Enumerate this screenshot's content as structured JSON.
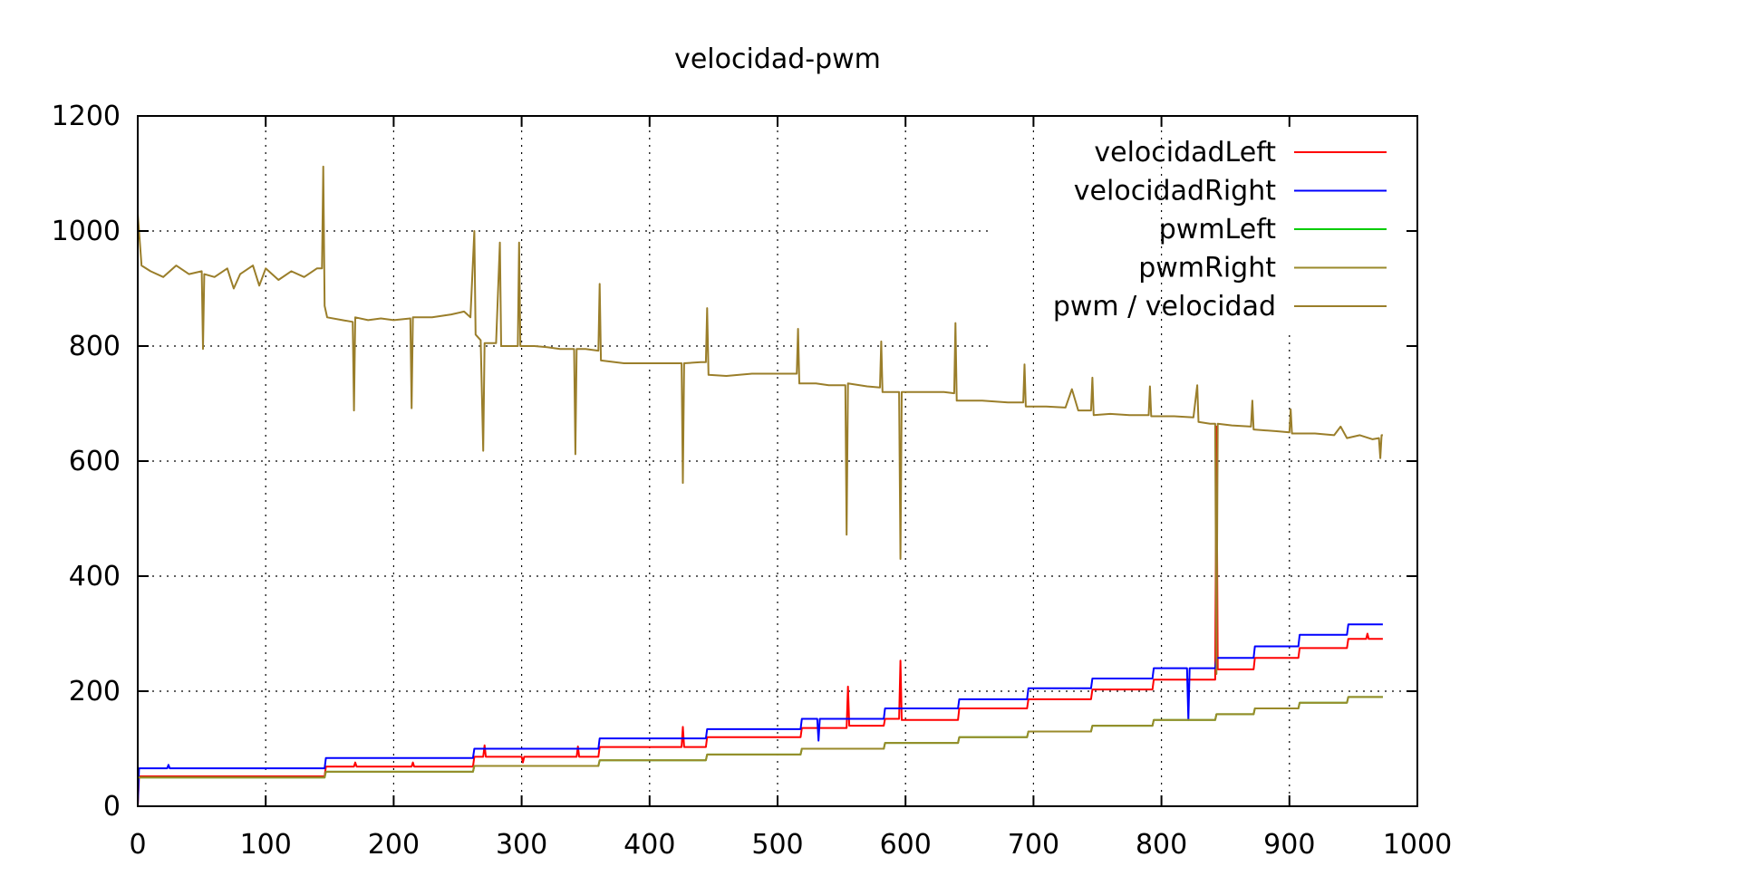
{
  "chart_data": {
    "type": "line",
    "title": "velocidad-pwm",
    "xlabel": "",
    "ylabel": "",
    "xlim": [
      0,
      1000
    ],
    "ylim": [
      0,
      1200
    ],
    "xticks": [
      0,
      100,
      200,
      300,
      400,
      500,
      600,
      700,
      800,
      900,
      1000
    ],
    "yticks": [
      0,
      200,
      400,
      600,
      800,
      1000,
      1200
    ],
    "grid": true,
    "legend_position": "top-right",
    "series": [
      {
        "name": "velocidadLeft",
        "color": "#ff0000",
        "points": [
          [
            0,
            0
          ],
          [
            1,
            52
          ],
          [
            146,
            52
          ],
          [
            147,
            69
          ],
          [
            169,
            69
          ],
          [
            170,
            76
          ],
          [
            171,
            69
          ],
          [
            214,
            69
          ],
          [
            215,
            76
          ],
          [
            216,
            69
          ],
          [
            262,
            69
          ],
          [
            263,
            86
          ],
          [
            270,
            86
          ],
          [
            271,
            106
          ],
          [
            272,
            86
          ],
          [
            300,
            86
          ],
          [
            301,
            76
          ],
          [
            302,
            86
          ],
          [
            343,
            86
          ],
          [
            344,
            104
          ],
          [
            345,
            86
          ],
          [
            360,
            86
          ],
          [
            361,
            103
          ],
          [
            425,
            103
          ],
          [
            426,
            138
          ],
          [
            427,
            103
          ],
          [
            444,
            103
          ],
          [
            445,
            120
          ],
          [
            518,
            120
          ],
          [
            519,
            136
          ],
          [
            554,
            136
          ],
          [
            555,
            208
          ],
          [
            556,
            140
          ],
          [
            583,
            140
          ],
          [
            584,
            152
          ],
          [
            595,
            152
          ],
          [
            596,
            253
          ],
          [
            597,
            150
          ],
          [
            641,
            150
          ],
          [
            642,
            170
          ],
          [
            695,
            170
          ],
          [
            696,
            186
          ],
          [
            745,
            186
          ],
          [
            746,
            203
          ],
          [
            793,
            203
          ],
          [
            794,
            220
          ],
          [
            842,
            220
          ],
          [
            843,
            660
          ],
          [
            844,
            238
          ],
          [
            845,
            238
          ],
          [
            872,
            238
          ],
          [
            873,
            258
          ],
          [
            907,
            258
          ],
          [
            908,
            275
          ],
          [
            945,
            275
          ],
          [
            946,
            291
          ],
          [
            960,
            291
          ],
          [
            961,
            300
          ],
          [
            962,
            291
          ],
          [
            973,
            291
          ]
        ]
      },
      {
        "name": "velocidadRight",
        "color": "#0000ff",
        "points": [
          [
            0,
            0
          ],
          [
            1,
            66
          ],
          [
            23,
            66
          ],
          [
            24,
            72
          ],
          [
            25,
            66
          ],
          [
            146,
            66
          ],
          [
            147,
            84
          ],
          [
            262,
            84
          ],
          [
            263,
            100
          ],
          [
            360,
            100
          ],
          [
            361,
            118
          ],
          [
            444,
            118
          ],
          [
            445,
            134
          ],
          [
            518,
            134
          ],
          [
            519,
            152
          ],
          [
            531,
            152
          ],
          [
            532,
            114
          ],
          [
            533,
            152
          ],
          [
            583,
            152
          ],
          [
            584,
            170
          ],
          [
            641,
            170
          ],
          [
            642,
            186
          ],
          [
            695,
            186
          ],
          [
            696,
            205
          ],
          [
            745,
            205
          ],
          [
            746,
            222
          ],
          [
            793,
            222
          ],
          [
            794,
            240
          ],
          [
            820,
            240
          ],
          [
            821,
            150
          ],
          [
            822,
            240
          ],
          [
            842,
            240
          ],
          [
            843,
            258
          ],
          [
            872,
            258
          ],
          [
            873,
            278
          ],
          [
            907,
            278
          ],
          [
            908,
            298
          ],
          [
            945,
            298
          ],
          [
            946,
            316
          ],
          [
            973,
            316
          ]
        ]
      },
      {
        "name": "pwmLeft",
        "color": "#00cc00",
        "points": [
          [
            0,
            50
          ],
          [
            146,
            50
          ],
          [
            147,
            60
          ],
          [
            262,
            60
          ],
          [
            263,
            70
          ],
          [
            360,
            70
          ],
          [
            361,
            80
          ],
          [
            444,
            80
          ],
          [
            445,
            90
          ],
          [
            518,
            90
          ],
          [
            519,
            100
          ],
          [
            583,
            100
          ],
          [
            584,
            110
          ],
          [
            641,
            110
          ],
          [
            642,
            120
          ],
          [
            695,
            120
          ],
          [
            696,
            130
          ],
          [
            745,
            130
          ],
          [
            746,
            140
          ],
          [
            793,
            140
          ],
          [
            794,
            150
          ],
          [
            842,
            150
          ],
          [
            843,
            160
          ],
          [
            872,
            160
          ],
          [
            873,
            170
          ],
          [
            907,
            170
          ],
          [
            908,
            180
          ],
          [
            945,
            180
          ],
          [
            946,
            190
          ],
          [
            973,
            190
          ]
        ]
      },
      {
        "name": "pwmRight",
        "color": "#9a8a2a",
        "points": [
          [
            0,
            50
          ],
          [
            146,
            50
          ],
          [
            147,
            60
          ],
          [
            262,
            60
          ],
          [
            263,
            70
          ],
          [
            360,
            70
          ],
          [
            361,
            80
          ],
          [
            444,
            80
          ],
          [
            445,
            90
          ],
          [
            518,
            90
          ],
          [
            519,
            100
          ],
          [
            583,
            100
          ],
          [
            584,
            110
          ],
          [
            641,
            110
          ],
          [
            642,
            120
          ],
          [
            695,
            120
          ],
          [
            696,
            130
          ],
          [
            745,
            130
          ],
          [
            746,
            140
          ],
          [
            793,
            140
          ],
          [
            794,
            150
          ],
          [
            842,
            150
          ],
          [
            843,
            160
          ],
          [
            872,
            160
          ],
          [
            873,
            170
          ],
          [
            907,
            170
          ],
          [
            908,
            180
          ],
          [
            945,
            180
          ],
          [
            946,
            190
          ],
          [
            973,
            190
          ]
        ]
      },
      {
        "name": "pwm / velocidad",
        "color": "#9a7e2a",
        "points": [
          [
            0,
            1030
          ],
          [
            3,
            940
          ],
          [
            10,
            930
          ],
          [
            20,
            920
          ],
          [
            30,
            940
          ],
          [
            40,
            925
          ],
          [
            50,
            930
          ],
          [
            51,
            795
          ],
          [
            52,
            925
          ],
          [
            60,
            920
          ],
          [
            70,
            935
          ],
          [
            75,
            900
          ],
          [
            80,
            925
          ],
          [
            90,
            940
          ],
          [
            95,
            905
          ],
          [
            100,
            935
          ],
          [
            110,
            915
          ],
          [
            120,
            930
          ],
          [
            130,
            920
          ],
          [
            140,
            935
          ],
          [
            144,
            935
          ],
          [
            145,
            1112
          ],
          [
            146,
            870
          ],
          [
            148,
            850
          ],
          [
            160,
            845
          ],
          [
            168,
            842
          ],
          [
            169,
            688
          ],
          [
            170,
            850
          ],
          [
            180,
            845
          ],
          [
            190,
            848
          ],
          [
            200,
            845
          ],
          [
            213,
            848
          ],
          [
            214,
            692
          ],
          [
            215,
            850
          ],
          [
            230,
            850
          ],
          [
            245,
            855
          ],
          [
            255,
            860
          ],
          [
            260,
            850
          ],
          [
            263,
            1000
          ],
          [
            264,
            820
          ],
          [
            268,
            810
          ],
          [
            270,
            618
          ],
          [
            271,
            805
          ],
          [
            280,
            805
          ],
          [
            283,
            980
          ],
          [
            284,
            800
          ],
          [
            290,
            800
          ],
          [
            297,
            800
          ],
          [
            298,
            980
          ],
          [
            299,
            800
          ],
          [
            310,
            800
          ],
          [
            320,
            798
          ],
          [
            330,
            795
          ],
          [
            341,
            795
          ],
          [
            342,
            612
          ],
          [
            343,
            795
          ],
          [
            350,
            795
          ],
          [
            360,
            792
          ],
          [
            361,
            908
          ],
          [
            362,
            775
          ],
          [
            380,
            770
          ],
          [
            400,
            770
          ],
          [
            420,
            770
          ],
          [
            425,
            770
          ],
          [
            426,
            562
          ],
          [
            427,
            770
          ],
          [
            440,
            772
          ],
          [
            444,
            772
          ],
          [
            445,
            866
          ],
          [
            446,
            750
          ],
          [
            460,
            748
          ],
          [
            480,
            752
          ],
          [
            500,
            752
          ],
          [
            515,
            752
          ],
          [
            516,
            830
          ],
          [
            517,
            735
          ],
          [
            530,
            735
          ],
          [
            540,
            732
          ],
          [
            553,
            732
          ],
          [
            554,
            472
          ],
          [
            555,
            735
          ],
          [
            570,
            730
          ],
          [
            580,
            728
          ],
          [
            581,
            808
          ],
          [
            582,
            720
          ],
          [
            590,
            720
          ],
          [
            595,
            720
          ],
          [
            596,
            430
          ],
          [
            597,
            720
          ],
          [
            610,
            720
          ],
          [
            630,
            720
          ],
          [
            638,
            718
          ],
          [
            639,
            840
          ],
          [
            640,
            705
          ],
          [
            660,
            705
          ],
          [
            680,
            702
          ],
          [
            692,
            702
          ],
          [
            693,
            768
          ],
          [
            694,
            695
          ],
          [
            710,
            695
          ],
          [
            725,
            693
          ],
          [
            730,
            725
          ],
          [
            735,
            688
          ],
          [
            745,
            688
          ],
          [
            746,
            745
          ],
          [
            747,
            680
          ],
          [
            760,
            682
          ],
          [
            775,
            680
          ],
          [
            790,
            680
          ],
          [
            791,
            730
          ],
          [
            792,
            678
          ],
          [
            810,
            678
          ],
          [
            825,
            676
          ],
          [
            828,
            732
          ],
          [
            829,
            668
          ],
          [
            838,
            665
          ],
          [
            842,
            665
          ],
          [
            843,
            230
          ],
          [
            844,
            665
          ],
          [
            855,
            662
          ],
          [
            870,
            660
          ],
          [
            871,
            705
          ],
          [
            872,
            655
          ],
          [
            890,
            652
          ],
          [
            900,
            650
          ],
          [
            901,
            690
          ],
          [
            902,
            648
          ],
          [
            920,
            648
          ],
          [
            935,
            645
          ],
          [
            940,
            660
          ],
          [
            945,
            640
          ],
          [
            955,
            645
          ],
          [
            965,
            638
          ],
          [
            970,
            640
          ],
          [
            971,
            605
          ],
          [
            972,
            645
          ],
          [
            973,
            645
          ]
        ]
      }
    ]
  }
}
